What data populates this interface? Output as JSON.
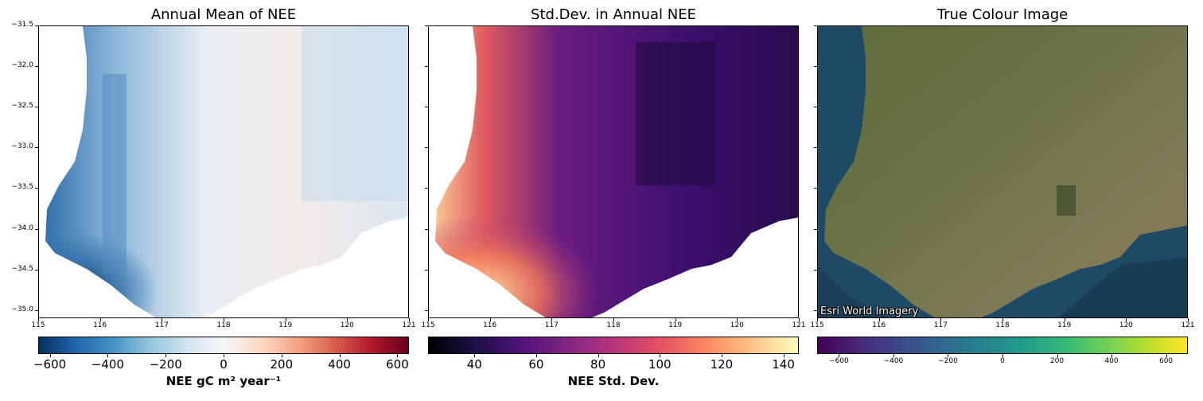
{
  "panels": [
    {
      "title": "Annual Mean of NEE",
      "colorbar_label": "NEE gC m² year⁻¹",
      "colormap": "RdBu_r",
      "colorbar_ticks": [
        "−600",
        "−400",
        "−200",
        "0",
        "200",
        "400",
        "600"
      ],
      "colorbar_range": [
        -640,
        640
      ]
    },
    {
      "title": "Std.Dev. in Annual NEE",
      "colorbar_label": "NEE Std. Dev.",
      "colormap": "magma",
      "colorbar_ticks": [
        "40",
        "60",
        "80",
        "100",
        "120",
        "140"
      ],
      "colorbar_range": [
        25,
        145
      ]
    },
    {
      "title": "True Colour Image",
      "colorbar_label": "",
      "colormap": "viridis",
      "colorbar_ticks": [
        "−600",
        "−400",
        "−200",
        "0",
        "200",
        "400",
        "600"
      ],
      "colorbar_range": [
        -680,
        680
      ],
      "attribution": "Esri World Imagery"
    }
  ],
  "y_ticks": [
    "−31.5",
    "−32.0",
    "−32.5",
    "−33.0",
    "−33.5",
    "−34.0",
    "−34.5",
    "−35.0"
  ],
  "y_tick_values": [
    -31.5,
    -32.0,
    -32.5,
    -33.0,
    -33.5,
    -34.0,
    -34.5,
    -35.0
  ],
  "y_range": [
    -31.5,
    -35.1
  ],
  "x_ticks": [
    "115",
    "116",
    "117",
    "118",
    "119",
    "120",
    "121"
  ],
  "x_tick_values": [
    115,
    116,
    117,
    118,
    119,
    120,
    121
  ],
  "x_range": [
    115,
    121
  ],
  "colors": {
    "ocean": "#1d3d55",
    "land": "#5a6b3a"
  }
}
